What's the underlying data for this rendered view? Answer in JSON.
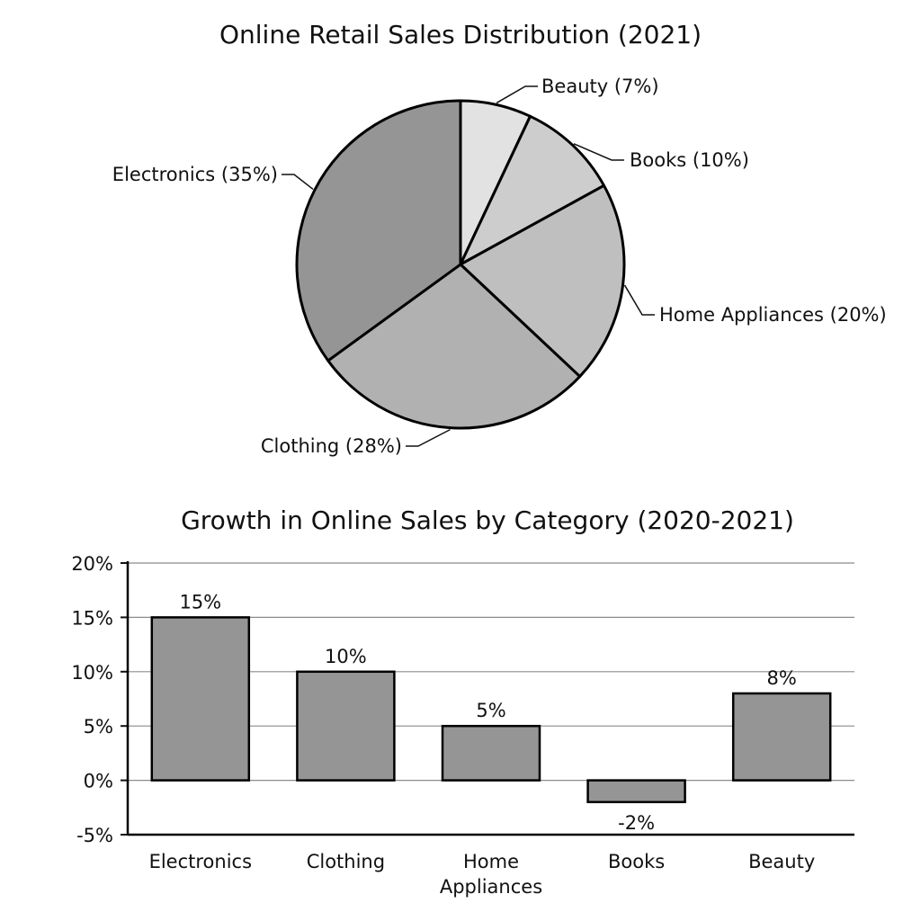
{
  "chart_data": [
    {
      "type": "pie",
      "title": "Online Retail Sales Distribution (2021)",
      "slices": [
        {
          "name": "Beauty",
          "value": 7,
          "label": "Beauty (7%)",
          "color": "#e2e2e2"
        },
        {
          "name": "Books",
          "value": 10,
          "label": "Books (10%)",
          "color": "#cdcdcd"
        },
        {
          "name": "Home Appliances",
          "value": 20,
          "label": "Home Appliances (20%)",
          "color": "#bfbfbf"
        },
        {
          "name": "Clothing",
          "value": 28,
          "label": "Clothing (28%)",
          "color": "#b1b1b1"
        },
        {
          "name": "Electronics",
          "value": 35,
          "label": "Electronics (35%)",
          "color": "#959595"
        }
      ],
      "start": "12 o'clock, clockwise"
    },
    {
      "type": "bar",
      "title": "Growth in Online Sales by Category (2020-2021)",
      "categories": [
        "Electronics",
        "Clothing",
        "Home Appliances",
        "Books",
        "Beauty"
      ],
      "category_lines": [
        [
          "Electronics"
        ],
        [
          "Clothing"
        ],
        [
          "Home",
          "Appliances"
        ],
        [
          "Books"
        ],
        [
          "Beauty"
        ]
      ],
      "values": [
        15,
        10,
        5,
        -2,
        8
      ],
      "value_labels": [
        "15%",
        "10%",
        "5%",
        "-2%",
        "8%"
      ],
      "ylim": [
        -5,
        20
      ],
      "yticks": [
        20,
        15,
        10,
        5,
        0,
        -5
      ],
      "ytick_labels": [
        "20%",
        "15%",
        "10%",
        "5%",
        "0%",
        "-5%"
      ],
      "grid": true,
      "bar_color": "#959595"
    }
  ]
}
